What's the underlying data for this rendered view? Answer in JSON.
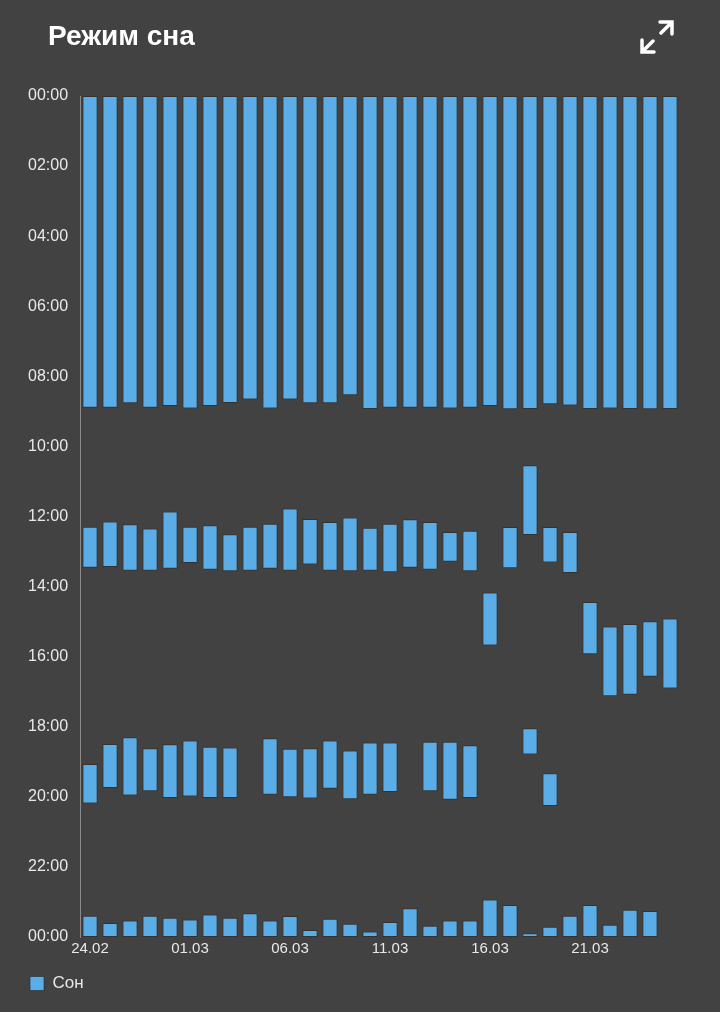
{
  "chart_data": {
    "type": "bar",
    "title": "Режим сна",
    "categories": [
      "24.02",
      null,
      null,
      null,
      null,
      "01.03",
      null,
      null,
      null,
      null,
      "06.03",
      null,
      null,
      null,
      null,
      "11.03",
      null,
      null,
      null,
      null,
      "16.03",
      null,
      null,
      null,
      null,
      "21.03",
      null,
      null,
      null,
      null
    ],
    "series": [
      {
        "name": "Сон",
        "color": "#5aade6",
        "base": [
          0,
          0,
          0,
          0,
          0,
          0,
          0,
          0,
          0,
          0,
          0,
          0,
          0,
          0,
          0,
          0,
          0,
          0,
          0,
          0,
          0,
          0,
          0,
          0,
          0,
          0,
          0,
          0,
          0,
          0
        ],
        "values": [
          8.9,
          8.9,
          8.77,
          8.9,
          8.85,
          8.92,
          8.85,
          8.76,
          8.66,
          8.92,
          8.66,
          8.77,
          8.77,
          8.54,
          8.93,
          8.9,
          8.9,
          8.9,
          8.92,
          8.9,
          8.85,
          8.94,
          8.93,
          8.8,
          8.83,
          8.93,
          8.92,
          8.93,
          8.94,
          8.93
        ]
      },
      {
        "color": "#5aade6",
        "base": [
          12.29,
          12.14,
          12.22,
          12.34,
          11.86,
          12.29,
          12.25,
          12.51,
          12.29,
          12.21,
          11.77,
          12.07,
          12.16,
          12.03,
          12.32,
          12.21,
          12.08,
          12.16,
          12.44,
          12.41,
          14.17,
          12.3,
          10.54,
          12.3,
          12.44,
          14.44,
          15.14,
          15.07,
          14.99,
          14.91
        ],
        "values": [
          1.17,
          1.3,
          1.33,
          1.21,
          1.63,
          1.04,
          1.27,
          1.05,
          1.26,
          1.28,
          1.78,
          1.3,
          1.39,
          1.53,
          1.23,
          1.38,
          1.38,
          1.36,
          0.85,
          1.15,
          1.51,
          1.18,
          1.99,
          1.01,
          1.17,
          1.49,
          1.99,
          2.02,
          1.58,
          2.0
        ]
      },
      {
        "color": "#5aade6",
        "base": [
          19.06,
          18.49,
          18.3,
          18.61,
          18.5,
          18.39,
          18.57,
          18.59,
          null,
          18.33,
          18.63,
          18.61,
          18.39,
          18.68,
          18.45,
          18.45,
          null,
          18.43,
          18.43,
          18.53,
          null,
          null,
          18.04,
          19.33,
          null,
          null,
          null,
          null,
          null,
          null
        ],
        "values": [
          1.13,
          1.26,
          1.66,
          1.23,
          1.53,
          1.6,
          1.46,
          1.44,
          null,
          1.61,
          1.38,
          1.44,
          1.38,
          1.39,
          1.49,
          1.41,
          null,
          1.41,
          1.65,
          1.5,
          null,
          null,
          0.75,
          0.93,
          null,
          null,
          null,
          null,
          null,
          null
        ]
      },
      {
        "color": "#5aade6",
        "base": [
          23.39,
          23.6,
          23.53,
          23.39,
          23.45,
          23.5,
          23.36,
          23.45,
          23.32,
          23.53,
          23.4,
          23.8,
          23.48,
          23.62,
          23.84,
          23.57,
          23.18,
          23.68,
          23.53,
          23.53,
          22.93,
          23.09,
          23.89,
          23.71,
          23.39,
          23.09,
          23.65,
          23.22,
          23.26,
          null
        ],
        "values": [
          0.61,
          0.4,
          0.47,
          0.61,
          0.55,
          0.5,
          0.64,
          0.55,
          0.68,
          0.47,
          0.6,
          0.2,
          0.52,
          0.38,
          0.16,
          0.43,
          0.82,
          0.32,
          0.47,
          0.47,
          1.07,
          0.91,
          0.11,
          0.29,
          0.61,
          0.91,
          0.35,
          0.78,
          0.74,
          null
        ]
      }
    ],
    "ylim": [
      24,
      0
    ],
    "yticks": [
      {
        "value": 0,
        "label": "00:00"
      },
      {
        "value": 2,
        "label": "02:00"
      },
      {
        "value": 4,
        "label": "04:00"
      },
      {
        "value": 6,
        "label": "06:00"
      },
      {
        "value": 8,
        "label": "08:00"
      },
      {
        "value": 10,
        "label": "10:00"
      },
      {
        "value": 12,
        "label": "12:00"
      },
      {
        "value": 14,
        "label": "14:00"
      },
      {
        "value": 16,
        "label": "16:00"
      },
      {
        "value": 18,
        "label": "18:00"
      },
      {
        "value": 20,
        "label": "20:00"
      },
      {
        "value": 22,
        "label": "22:00"
      },
      {
        "value": 24,
        "label": "00:00"
      }
    ],
    "grid": false,
    "legend": "bottom left"
  }
}
